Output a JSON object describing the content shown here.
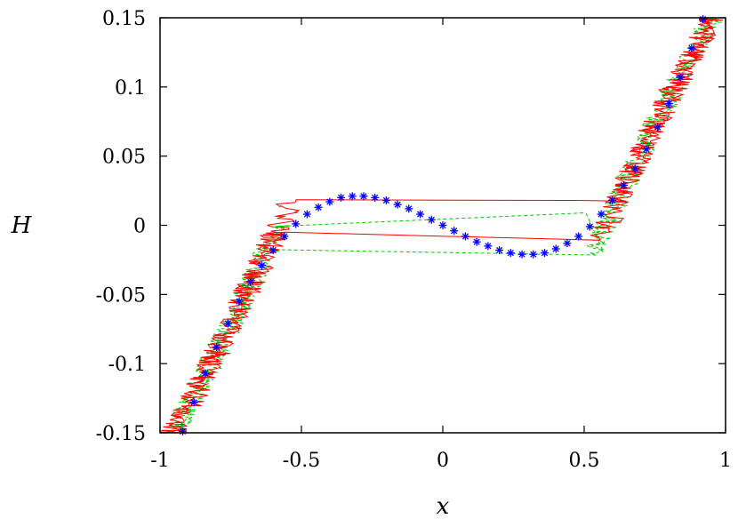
{
  "chart_data": {
    "type": "scatter",
    "xlabel": "x",
    "ylabel": "H",
    "xlim": [
      -1,
      1
    ],
    "ylim": [
      -0.15,
      0.15
    ],
    "xticks": [
      "-1",
      "-0.5",
      "0",
      "0.5",
      "1"
    ],
    "yticks": [
      "-0.15",
      "-0.1",
      "-0.05",
      "0",
      "0.05",
      "0.1",
      "0.15"
    ],
    "grid": false,
    "colors": {
      "red_trace": "#ff0000",
      "green_trace": "#00cc00",
      "markers": "#0000ff"
    },
    "series": [
      {
        "style": "blue-star-markers",
        "x": [
          -0.92,
          -0.88,
          -0.84,
          -0.8,
          -0.76,
          -0.72,
          -0.68,
          -0.64,
          -0.6,
          -0.56,
          -0.52,
          -0.48,
          -0.44,
          -0.4,
          -0.36,
          -0.32,
          -0.28,
          -0.24,
          -0.2,
          -0.16,
          -0.12,
          -0.08,
          -0.04,
          0.0,
          0.04,
          0.08,
          0.12,
          0.16,
          0.2,
          0.24,
          0.28,
          0.32,
          0.36,
          0.4,
          0.44,
          0.48,
          0.52,
          0.56,
          0.6,
          0.64,
          0.68,
          0.72,
          0.76,
          0.8,
          0.84,
          0.88,
          0.92
        ],
        "y": [
          -0.149,
          -0.128,
          -0.107,
          -0.088,
          -0.071,
          -0.055,
          -0.041,
          -0.029,
          -0.018,
          -0.008,
          0.001,
          0.008,
          0.013,
          0.017,
          0.02,
          0.021,
          0.021,
          0.02,
          0.018,
          0.015,
          0.012,
          0.008,
          0.004,
          0.0,
          -0.004,
          -0.008,
          -0.012,
          -0.015,
          -0.018,
          -0.02,
          -0.021,
          -0.021,
          -0.02,
          -0.017,
          -0.013,
          -0.008,
          -0.001,
          0.008,
          0.018,
          0.029,
          0.041,
          0.055,
          0.071,
          0.088,
          0.107,
          0.128,
          0.149
        ]
      },
      {
        "style": "red-solid-noisy-trace"
      },
      {
        "style": "green-dashed-noisy-trace"
      }
    ]
  }
}
